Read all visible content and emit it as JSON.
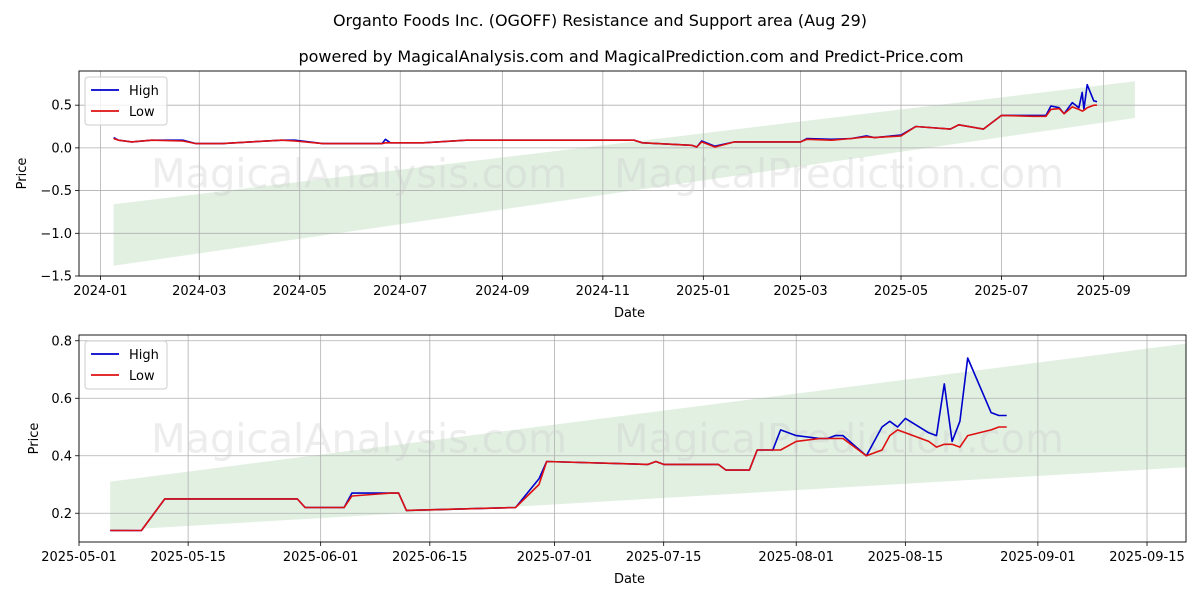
{
  "title": "Organto Foods Inc. (OGOFF) Resistance and Support area (Aug 29)",
  "subtitle": "powered by MagicalAnalysis.com and MagicalPrediction.com and Predict-Price.com",
  "watermarks": [
    "MagicalAnalysis.com",
    "MagicalPrediction.com"
  ],
  "colors": {
    "high": "#0000cc",
    "low": "#dd1111",
    "band": "#d6ead6"
  },
  "chart_data": [
    {
      "type": "line",
      "xlabel": "Date",
      "ylabel": "Price",
      "xlim": [
        "2023-12-19",
        "2025-10-21"
      ],
      "ylim": [
        -1.5,
        0.9
      ],
      "xticks": [
        "2024-01-01",
        "2024-03-01",
        "2024-05-01",
        "2024-07-01",
        "2024-09-01",
        "2024-11-01",
        "2025-01-01",
        "2025-03-01",
        "2025-05-01",
        "2025-07-01",
        "2025-09-01"
      ],
      "xtick_labels": [
        "2024-01",
        "2024-03",
        "2024-05",
        "2024-07",
        "2024-09",
        "2024-11",
        "2025-01",
        "2025-03",
        "2025-05",
        "2025-07",
        "2025-09"
      ],
      "yticks": [
        -1.5,
        -1.0,
        -0.5,
        0.0,
        0.5
      ],
      "ytick_labels": [
        "−1.5",
        "−1.0",
        "−0.5",
        "0.0",
        "0.5"
      ],
      "grid": true,
      "legend": "upper left",
      "band": {
        "x": [
          "2024-01-09",
          "2025-09-20"
        ],
        "upper": [
          -0.66,
          0.78
        ],
        "lower": [
          -1.38,
          0.35
        ]
      },
      "series": [
        {
          "name": "High",
          "x": [
            "2024-01-09",
            "2024-01-12",
            "2024-01-20",
            "2024-02-01",
            "2024-02-20",
            "2024-02-28",
            "2024-03-15",
            "2024-04-01",
            "2024-04-20",
            "2024-04-28",
            "2024-05-15",
            "2024-06-01",
            "2024-06-20",
            "2024-06-22",
            "2024-06-25",
            "2024-07-15",
            "2024-08-10",
            "2024-09-15",
            "2024-10-10",
            "2024-11-20",
            "2024-11-25",
            "2024-12-25",
            "2024-12-28",
            "2024-12-31",
            "2025-01-08",
            "2025-01-20",
            "2025-03-01",
            "2025-03-05",
            "2025-03-20",
            "2025-04-01",
            "2025-04-10",
            "2025-04-15",
            "2025-05-01",
            "2025-05-10",
            "2025-05-31",
            "2025-06-05",
            "2025-06-20",
            "2025-07-01",
            "2025-07-20",
            "2025-07-28",
            "2025-07-31",
            "2025-08-05",
            "2025-08-08",
            "2025-08-13",
            "2025-08-17",
            "2025-08-19",
            "2025-08-20",
            "2025-08-22",
            "2025-08-26",
            "2025-08-28"
          ],
          "values": [
            0.12,
            0.09,
            0.07,
            0.09,
            0.09,
            0.05,
            0.05,
            0.07,
            0.09,
            0.09,
            0.05,
            0.05,
            0.05,
            0.1,
            0.06,
            0.06,
            0.09,
            0.09,
            0.09,
            0.09,
            0.06,
            0.03,
            0.01,
            0.08,
            0.02,
            0.07,
            0.07,
            0.11,
            0.1,
            0.11,
            0.14,
            0.12,
            0.15,
            0.25,
            0.22,
            0.27,
            0.22,
            0.38,
            0.38,
            0.38,
            0.49,
            0.47,
            0.4,
            0.53,
            0.47,
            0.65,
            0.45,
            0.74,
            0.55,
            0.54
          ]
        },
        {
          "name": "Low",
          "x": [
            "2024-01-09",
            "2024-01-12",
            "2024-01-20",
            "2024-02-01",
            "2024-02-20",
            "2024-02-28",
            "2024-03-15",
            "2024-04-01",
            "2024-04-20",
            "2024-04-28",
            "2024-05-15",
            "2024-06-01",
            "2024-06-20",
            "2024-06-22",
            "2024-06-25",
            "2024-07-15",
            "2024-08-10",
            "2024-09-15",
            "2024-10-10",
            "2024-11-20",
            "2024-11-25",
            "2024-12-25",
            "2024-12-28",
            "2024-12-31",
            "2025-01-08",
            "2025-01-20",
            "2025-03-01",
            "2025-03-05",
            "2025-03-20",
            "2025-04-01",
            "2025-04-10",
            "2025-04-15",
            "2025-05-01",
            "2025-05-10",
            "2025-05-31",
            "2025-06-05",
            "2025-06-20",
            "2025-07-01",
            "2025-07-20",
            "2025-07-28",
            "2025-07-31",
            "2025-08-05",
            "2025-08-08",
            "2025-08-13",
            "2025-08-17",
            "2025-08-19",
            "2025-08-20",
            "2025-08-22",
            "2025-08-26",
            "2025-08-28"
          ],
          "values": [
            0.11,
            0.09,
            0.07,
            0.09,
            0.08,
            0.05,
            0.05,
            0.07,
            0.09,
            0.08,
            0.05,
            0.05,
            0.05,
            0.06,
            0.06,
            0.06,
            0.09,
            0.09,
            0.09,
            0.09,
            0.06,
            0.03,
            0.01,
            0.07,
            0.01,
            0.07,
            0.07,
            0.1,
            0.09,
            0.11,
            0.13,
            0.12,
            0.14,
            0.25,
            0.22,
            0.27,
            0.22,
            0.38,
            0.37,
            0.37,
            0.45,
            0.46,
            0.4,
            0.48,
            0.45,
            0.43,
            0.44,
            0.47,
            0.5,
            0.5
          ]
        }
      ]
    },
    {
      "type": "line",
      "xlabel": "Date",
      "ylabel": "Price",
      "xlim": [
        "2025-05-01",
        "2025-09-20"
      ],
      "ylim": [
        0.1,
        0.82
      ],
      "xticks": [
        "2025-05-01",
        "2025-05-15",
        "2025-06-01",
        "2025-06-15",
        "2025-07-01",
        "2025-07-15",
        "2025-08-01",
        "2025-08-15",
        "2025-09-01",
        "2025-09-15"
      ],
      "xtick_labels": [
        "2025-05-01",
        "2025-05-15",
        "2025-06-01",
        "2025-06-15",
        "2025-07-01",
        "2025-07-15",
        "2025-08-01",
        "2025-08-15",
        "2025-09-01",
        "2025-09-15"
      ],
      "yticks": [
        0.2,
        0.4,
        0.6,
        0.8
      ],
      "ytick_labels": [
        "0.2",
        "0.4",
        "0.6",
        "0.8"
      ],
      "grid": true,
      "legend": "upper left",
      "band": {
        "x": [
          "2025-05-05",
          "2025-09-20"
        ],
        "upper": [
          0.31,
          0.79
        ],
        "lower": [
          0.14,
          0.36
        ]
      },
      "series": [
        {
          "name": "High",
          "x": [
            "2025-05-05",
            "2025-05-09",
            "2025-05-12",
            "2025-05-29",
            "2025-05-30",
            "2025-06-04",
            "2025-06-05",
            "2025-06-10",
            "2025-06-11",
            "2025-06-12",
            "2025-06-26",
            "2025-06-29",
            "2025-06-30",
            "2025-07-13",
            "2025-07-14",
            "2025-07-15",
            "2025-07-22",
            "2025-07-23",
            "2025-07-26",
            "2025-07-27",
            "2025-07-29",
            "2025-07-30",
            "2025-08-01",
            "2025-08-04",
            "2025-08-05",
            "2025-08-06",
            "2025-08-07",
            "2025-08-10",
            "2025-08-12",
            "2025-08-13",
            "2025-08-14",
            "2025-08-15",
            "2025-08-18",
            "2025-08-19",
            "2025-08-20",
            "2025-08-21",
            "2025-08-22",
            "2025-08-23",
            "2025-08-26",
            "2025-08-27",
            "2025-08-28"
          ],
          "values": [
            0.14,
            0.14,
            0.25,
            0.25,
            0.22,
            0.22,
            0.27,
            0.27,
            0.27,
            0.21,
            0.22,
            0.32,
            0.38,
            0.37,
            0.38,
            0.37,
            0.37,
            0.35,
            0.35,
            0.42,
            0.42,
            0.49,
            0.47,
            0.46,
            0.46,
            0.47,
            0.47,
            0.4,
            0.5,
            0.52,
            0.5,
            0.53,
            0.48,
            0.47,
            0.65,
            0.45,
            0.52,
            0.74,
            0.55,
            0.54,
            0.54
          ]
        },
        {
          "name": "Low",
          "x": [
            "2025-05-05",
            "2025-05-09",
            "2025-05-12",
            "2025-05-29",
            "2025-05-30",
            "2025-06-04",
            "2025-06-05",
            "2025-06-10",
            "2025-06-11",
            "2025-06-12",
            "2025-06-26",
            "2025-06-29",
            "2025-06-30",
            "2025-07-13",
            "2025-07-14",
            "2025-07-15",
            "2025-07-22",
            "2025-07-23",
            "2025-07-26",
            "2025-07-27",
            "2025-07-29",
            "2025-07-30",
            "2025-08-01",
            "2025-08-04",
            "2025-08-05",
            "2025-08-06",
            "2025-08-07",
            "2025-08-10",
            "2025-08-12",
            "2025-08-13",
            "2025-08-14",
            "2025-08-15",
            "2025-08-18",
            "2025-08-19",
            "2025-08-20",
            "2025-08-21",
            "2025-08-22",
            "2025-08-23",
            "2025-08-26",
            "2025-08-27",
            "2025-08-28"
          ],
          "values": [
            0.14,
            0.14,
            0.25,
            0.25,
            0.22,
            0.22,
            0.26,
            0.27,
            0.27,
            0.21,
            0.22,
            0.3,
            0.38,
            0.37,
            0.38,
            0.37,
            0.37,
            0.35,
            0.35,
            0.42,
            0.42,
            0.42,
            0.45,
            0.46,
            0.46,
            0.46,
            0.46,
            0.4,
            0.42,
            0.47,
            0.49,
            0.48,
            0.45,
            0.43,
            0.44,
            0.44,
            0.43,
            0.47,
            0.49,
            0.5,
            0.5
          ]
        }
      ]
    }
  ]
}
